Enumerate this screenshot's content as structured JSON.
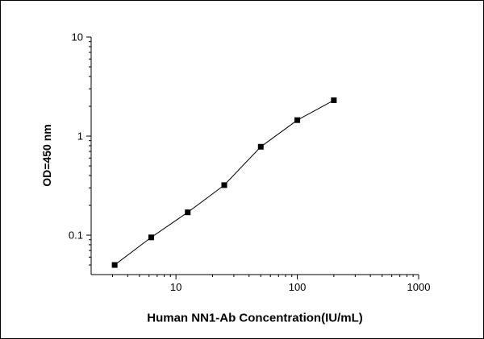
{
  "chart_data": {
    "type": "scatter",
    "title": "",
    "xlabel": "Human NN1-Ab Concentration(IU/mL)",
    "ylabel": "OD=450 nm",
    "xscale": "log",
    "yscale": "log",
    "xlim": [
      2,
      1000
    ],
    "ylim": [
      0.04,
      10
    ],
    "x_ticks": [
      10,
      100,
      1000
    ],
    "y_ticks": [
      0.1,
      1,
      10
    ],
    "x": [
      3.125,
      6.25,
      12.5,
      25,
      50,
      100,
      200
    ],
    "y": [
      0.05,
      0.095,
      0.17,
      0.32,
      0.78,
      1.45,
      2.3
    ],
    "marker": "square",
    "marker_color": "#000000",
    "line_color": "#000000",
    "axis_color": "#000000",
    "background_color": "#ffffff",
    "grid": "off",
    "legend": "none"
  }
}
